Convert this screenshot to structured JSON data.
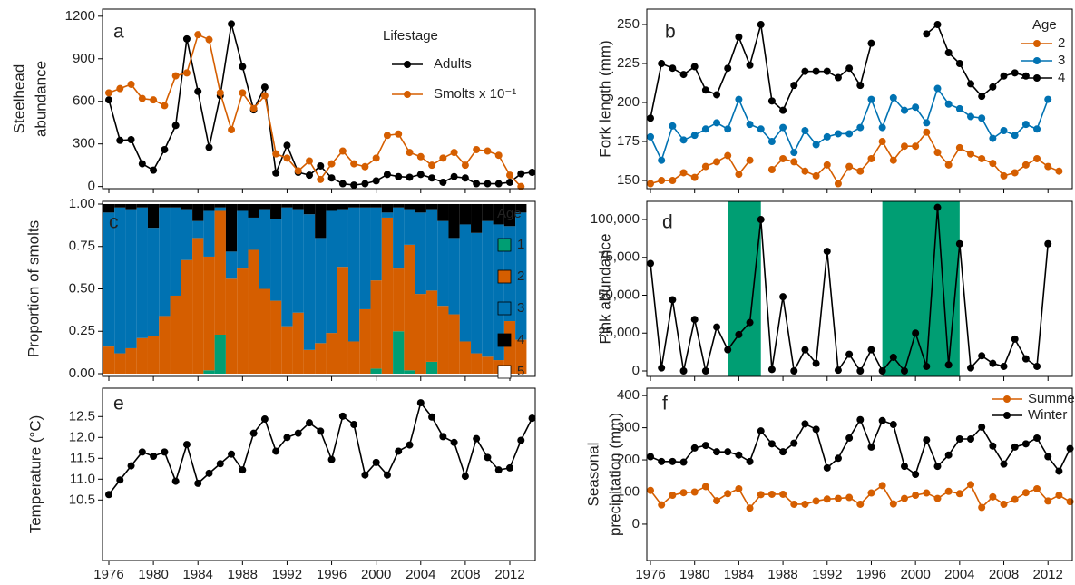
{
  "chart_data": [
    {
      "type": "line",
      "label": "a",
      "ylabel": [
        "Steelhead",
        "abundance"
      ],
      "x": [
        1976,
        1977,
        1978,
        1979,
        1980,
        1981,
        1982,
        1983,
        1984,
        1985,
        1986,
        1987,
        1988,
        1989,
        1990,
        1991,
        1992,
        1993,
        1994,
        1995,
        1996,
        1997,
        1998,
        1999,
        2000,
        2001,
        2002,
        2003,
        2004,
        2005,
        2006,
        2007,
        2008,
        2009,
        2010,
        2011,
        2012,
        2013,
        2014
      ],
      "series": [
        {
          "name": "Adults",
          "color": "#000000",
          "values": [
            610,
            325,
            330,
            160,
            115,
            260,
            430,
            1040,
            670,
            275,
            640,
            1145,
            845,
            540,
            700,
            95,
            290,
            100,
            80,
            145,
            60,
            20,
            10,
            20,
            40,
            85,
            70,
            65,
            85,
            60,
            30,
            70,
            60,
            20,
            20,
            20,
            30,
            90,
            100
          ]
        },
        {
          "name": "Smolts x 10⁻¹",
          "color": "#d55e00",
          "values": [
            660,
            690,
            720,
            620,
            610,
            570,
            780,
            800,
            1070,
            1035,
            660,
            400,
            660,
            550,
            640,
            230,
            200,
            110,
            180,
            50,
            160,
            250,
            160,
            140,
            200,
            360,
            370,
            240,
            210,
            150,
            200,
            240,
            150,
            260,
            250,
            220,
            80,
            0,
            null
          ]
        }
      ],
      "legend": "top-right",
      "legend_title": "Lifestage",
      "xlim": [
        1975.43,
        2014.28
      ],
      "xticks": [
        1976,
        1980,
        1984,
        1988,
        1992,
        1996,
        2000,
        2004,
        2008,
        2012
      ],
      "ylim": [
        -15,
        1250
      ],
      "yticks": [
        0,
        300,
        600,
        900,
        1200
      ]
    },
    {
      "type": "line",
      "label": "b",
      "ylabel": "Fork length (mm)",
      "x": [
        1976,
        1977,
        1978,
        1979,
        1980,
        1981,
        1982,
        1983,
        1984,
        1985,
        1986,
        1987,
        1988,
        1989,
        1990,
        1991,
        1992,
        1993,
        1994,
        1995,
        1996,
        1997,
        1998,
        1999,
        2000,
        2001,
        2002,
        2003,
        2004,
        2005,
        2006,
        2007,
        2008,
        2009,
        2010,
        2011,
        2012,
        2013
      ],
      "series": [
        {
          "name": "2",
          "color": "#d55e00",
          "values": [
            148,
            150,
            150,
            155,
            152,
            159,
            162,
            166,
            154,
            163,
            null,
            157,
            164,
            162,
            156,
            153,
            160,
            148,
            159,
            156,
            164,
            175,
            163,
            172,
            172,
            181,
            168,
            160,
            171,
            167,
            164,
            161,
            153,
            155,
            160,
            164,
            159,
            156
          ]
        },
        {
          "name": "3",
          "color": "#0072b2",
          "values": [
            178,
            163,
            185,
            176,
            179,
            183,
            187,
            183,
            202,
            186,
            183,
            175,
            184,
            168,
            182,
            173,
            178,
            180,
            180,
            184,
            202,
            184,
            203,
            195,
            197,
            187,
            209,
            199,
            196,
            191,
            190,
            177,
            182,
            179,
            186,
            183,
            202,
            null
          ]
        },
        {
          "name": "4",
          "color": "#000000",
          "values": [
            190,
            225,
            222,
            218,
            223,
            208,
            205,
            222,
            242,
            224,
            250,
            201,
            195,
            211,
            220,
            220,
            220,
            216,
            222,
            211,
            238,
            null,
            null,
            null,
            null,
            244,
            250,
            232,
            225,
            212,
            204,
            210,
            217,
            219,
            217,
            null,
            null,
            null
          ]
        }
      ],
      "legend": "top-right",
      "legend_title": "Age",
      "xlim": [
        1975.67,
        2014.2
      ],
      "xticks": [
        1976,
        1980,
        1984,
        1988,
        1992,
        1996,
        2000,
        2004,
        2008,
        2012
      ],
      "ylim": [
        144.8,
        259.9
      ],
      "yticks": [
        150,
        175,
        200,
        225,
        250
      ]
    },
    {
      "type": "stacked_bar",
      "label": "c",
      "ylabel": "Proportion of smolts",
      "x": [
        1976,
        1977,
        1978,
        1979,
        1980,
        1981,
        1982,
        1983,
        1984,
        1985,
        1986,
        1987,
        1988,
        1989,
        1990,
        1991,
        1992,
        1993,
        1994,
        1995,
        1996,
        1997,
        1998,
        1999,
        2000,
        2001,
        2002,
        2003,
        2004,
        2005,
        2006,
        2007,
        2008,
        2009,
        2010,
        2011,
        2012,
        2013
      ],
      "series": [
        {
          "name": "1",
          "color": "#009e73",
          "values": [
            0,
            0,
            0,
            0,
            0,
            0,
            0,
            0,
            0,
            0.02,
            0.23,
            0,
            0,
            0,
            0,
            0,
            0,
            0,
            0,
            0,
            0,
            0,
            0,
            0,
            0.03,
            0,
            0.25,
            0.02,
            0,
            0.07,
            0,
            0,
            0,
            0,
            0,
            0,
            0,
            0
          ]
        },
        {
          "name": "2",
          "color": "#d55e00",
          "values": [
            0.16,
            0.12,
            0.15,
            0.21,
            0.22,
            0.34,
            0.46,
            0.67,
            0.8,
            0.67,
            0.73,
            0.56,
            0.62,
            0.73,
            0.5,
            0.43,
            0.28,
            0.36,
            0.14,
            0.18,
            0.24,
            0.63,
            0.19,
            0.38,
            0.52,
            0.92,
            0.37,
            0.74,
            0.47,
            0.42,
            0.4,
            0.35,
            0.19,
            0.12,
            0.1,
            0.08,
            0.31,
            0.2
          ]
        },
        {
          "name": "3",
          "color": "#0072b2",
          "values": [
            0.79,
            0.86,
            0.82,
            0.77,
            0.64,
            0.64,
            0.52,
            0.3,
            0.1,
            0.27,
            0.02,
            0.16,
            0.34,
            0.19,
            0.47,
            0.48,
            0.7,
            0.61,
            0.8,
            0.62,
            0.72,
            0.34,
            0.79,
            0.6,
            0.43,
            0.03,
            0.36,
            0.21,
            0.48,
            0.48,
            0.5,
            0.45,
            0.69,
            0.71,
            0.8,
            0.8,
            0.56,
            0.75
          ]
        },
        {
          "name": "4",
          "color": "#000000",
          "values": [
            0.05,
            0.02,
            0.03,
            0.02,
            0.14,
            0.02,
            0.02,
            0.03,
            0.1,
            0.04,
            0.02,
            0.28,
            0.04,
            0.08,
            0.03,
            0.09,
            0.02,
            0.03,
            0.06,
            0.2,
            0.04,
            0.03,
            0.02,
            0.02,
            0.02,
            0.05,
            0.02,
            0.03,
            0.05,
            0.03,
            0.1,
            0.2,
            0.12,
            0.17,
            0.1,
            0.12,
            0.13,
            0.05
          ]
        },
        {
          "name": "5",
          "color": "#ffffff",
          "values": [
            0,
            0,
            0,
            0,
            0,
            0,
            0,
            0,
            0,
            0,
            0,
            0,
            0,
            0,
            0,
            0,
            0,
            0,
            0,
            0,
            0,
            0,
            0,
            0,
            0,
            0,
            0,
            0,
            0,
            0,
            0,
            0,
            0,
            0,
            0,
            0,
            0,
            0
          ]
        }
      ],
      "legend": "right",
      "legend_title": "Age",
      "xlim": [
        1975.43,
        2014.28
      ],
      "xticks": [
        1976,
        1980,
        1984,
        1988,
        1992,
        1996,
        2000,
        2004,
        2008,
        2012
      ],
      "ylim": [
        -0.016,
        1.016
      ],
      "yticks": [
        {
          "value": 0,
          "label": "0.00"
        },
        0.25,
        {
          "value": 0.5,
          "label": "0.50"
        },
        0.75,
        {
          "value": 1,
          "label": "1.00"
        }
      ]
    },
    {
      "type": "line",
      "label": "d",
      "ylabel": "Pink abundance",
      "x": [
        1976,
        1977,
        1978,
        1979,
        1980,
        1981,
        1982,
        1983,
        1984,
        1985,
        1986,
        1987,
        1988,
        1989,
        1990,
        1991,
        1992,
        1993,
        1994,
        1995,
        1996,
        1997,
        1998,
        1999,
        2000,
        2001,
        2002,
        2003,
        2004,
        2005,
        2006,
        2007,
        2008,
        2009,
        2010,
        2011,
        2012
      ],
      "series": [
        {
          "color": "#000000",
          "values": [
            71000,
            2000,
            47000,
            0,
            34000,
            0,
            29000,
            14000,
            24000,
            32000,
            100000,
            1000,
            49000,
            0,
            14000,
            5000,
            79000,
            500,
            11000,
            0,
            14000,
            0,
            9000,
            0,
            25000,
            3000,
            108000,
            4000,
            84000,
            2000,
            10000,
            5000,
            3000,
            21000,
            8000,
            3000,
            84000
          ]
        }
      ],
      "shade": [
        [
          1983,
          1986
        ],
        [
          1997,
          2004
        ]
      ],
      "shade_color": "#009e73",
      "xlim": [
        1975.67,
        2014.2
      ],
      "xticks": [
        1976,
        1980,
        1984,
        1988,
        1992,
        1996,
        2000,
        2004,
        2008,
        2012
      ],
      "ylim": [
        -3600,
        112000
      ],
      "yticks": [
        0,
        {
          "value": 25000,
          "label": "25,000"
        },
        {
          "value": 50000,
          "label": "50,000"
        },
        {
          "value": 75000,
          "label": "75,000"
        },
        {
          "value": 100000,
          "label": "100,000"
        }
      ]
    },
    {
      "type": "line",
      "label": "e",
      "ylabel": "Temperature (°C)",
      "x": [
        1976,
        1977,
        1978,
        1979,
        1980,
        1981,
        1982,
        1983,
        1984,
        1985,
        1986,
        1987,
        1988,
        1989,
        1990,
        1991,
        1992,
        1993,
        1994,
        1995,
        1996,
        1997,
        1998,
        1999,
        2000,
        2001,
        2002,
        2003,
        2004,
        2005,
        2006,
        2007,
        2008,
        2009,
        2010,
        2011,
        2012,
        2013,
        2014
      ],
      "series": [
        {
          "color": "#000000",
          "values": [
            10.63,
            10.98,
            11.32,
            11.65,
            11.55,
            11.65,
            10.95,
            11.83,
            10.9,
            11.14,
            11.37,
            11.6,
            11.22,
            12.1,
            12.44,
            11.67,
            12.0,
            12.1,
            12.35,
            12.15,
            11.47,
            12.51,
            12.31,
            11.1,
            11.4,
            11.1,
            11.67,
            11.82,
            12.83,
            12.49,
            12.02,
            11.88,
            11.07,
            11.97,
            11.52,
            11.22,
            11.27,
            11.93,
            12.46
          ]
        }
      ],
      "xlim": [
        1975.43,
        2014.28
      ],
      "xticks": [
        1976,
        1980,
        1984,
        1988,
        1992,
        1996,
        2000,
        2004,
        2008,
        2012
      ],
      "ylim": [
        9.05,
        13.18
      ],
      "yticks": [
        10.5,
        {
          "value": 11,
          "label": "11.0"
        },
        11.5,
        {
          "value": 12,
          "label": "12.0"
        },
        12.5
      ]
    },
    {
      "type": "line",
      "label": "f",
      "ylabel": [
        "Seasonal",
        "precipitation (mm)"
      ],
      "x": [
        1976,
        1977,
        1978,
        1979,
        1980,
        1981,
        1982,
        1983,
        1984,
        1985,
        1986,
        1987,
        1988,
        1989,
        1990,
        1991,
        1992,
        1993,
        1994,
        1995,
        1996,
        1997,
        1998,
        1999,
        2000,
        2001,
        2002,
        2003,
        2004,
        2005,
        2006,
        2007,
        2008,
        2009,
        2010,
        2011,
        2012,
        2013,
        2014
      ],
      "series": [
        {
          "name": "Summer",
          "color": "#d55e00",
          "values": [
            105,
            60,
            90,
            98,
            100,
            117,
            73,
            95,
            110,
            50,
            92,
            93,
            93,
            62,
            62,
            72,
            78,
            80,
            83,
            62,
            97,
            120,
            63,
            80,
            90,
            97,
            80,
            102,
            95,
            123,
            52,
            85,
            62,
            77,
            98,
            110,
            72,
            90,
            70
          ]
        },
        {
          "name": "Winter",
          "color": "#000000",
          "values": [
            210,
            195,
            195,
            193,
            237,
            245,
            225,
            225,
            215,
            195,
            290,
            250,
            225,
            252,
            312,
            295,
            175,
            205,
            268,
            325,
            240,
            322,
            310,
            180,
            155,
            262,
            180,
            215,
            265,
            265,
            302,
            243,
            187,
            240,
            250,
            268,
            210,
            165,
            235
          ]
        }
      ],
      "legend": "top-right",
      "xlim": [
        1975.67,
        2014.2
      ],
      "xticks": [
        1976,
        1980,
        1984,
        1988,
        1992,
        1996,
        2000,
        2004,
        2008,
        2012
      ],
      "ylim": [
        -113,
        423
      ],
      "yticks": [
        0,
        100,
        200,
        300,
        400
      ]
    }
  ]
}
